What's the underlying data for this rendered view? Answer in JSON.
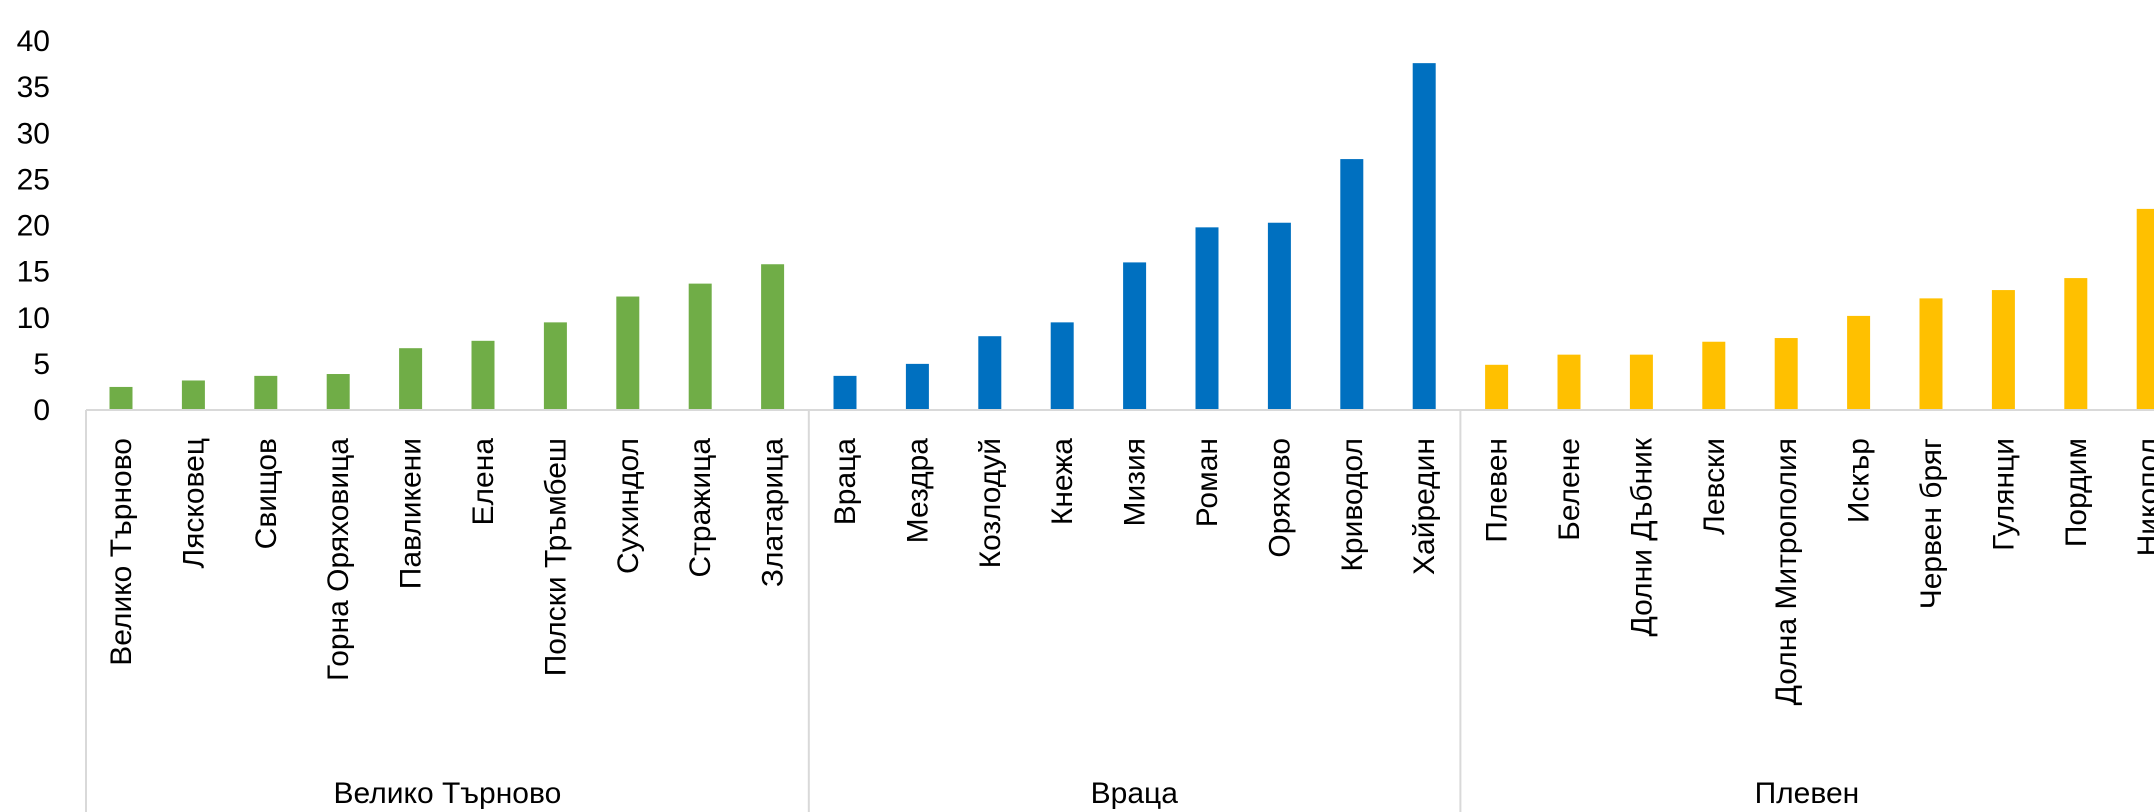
{
  "chart_data": {
    "type": "bar",
    "title": "",
    "xlabel": "",
    "ylabel": "",
    "ylim": [
      0,
      40
    ],
    "y_ticks": [
      "0",
      "5",
      "10",
      "15",
      "20",
      "25",
      "30",
      "35",
      "40"
    ],
    "grid": false,
    "legend": "none",
    "groups": [
      {
        "label": "Велико Търново",
        "color": "#70AD47",
        "categories": [
          "Велико Търново",
          "Лясковец",
          "Свищов",
          "Горна Оряховица",
          "Павликени",
          "Елена",
          "Полски Тръмбеш",
          "Сухиндол",
          "Стражица",
          "Златарица"
        ],
        "values": [
          2.5,
          3.2,
          3.7,
          3.9,
          6.7,
          7.5,
          9.5,
          12.3,
          13.7,
          15.8
        ]
      },
      {
        "label": "Враца",
        "color": "#0070C0",
        "categories": [
          "Враца",
          "Мездра",
          "Козлодуй",
          "Кнежа",
          "Мизия",
          "Роман",
          "Оряхово",
          "Криводол",
          "Хайредин"
        ],
        "values": [
          3.7,
          5.0,
          8.0,
          9.5,
          16.0,
          19.8,
          20.3,
          27.2,
          37.6
        ]
      },
      {
        "label": "Плевен",
        "color": "#FFC000",
        "categories": [
          "Плевен",
          "Белене",
          "Долни Дъбник",
          "Левски",
          "Долна Митрополия",
          "Искър",
          "Червен бряг",
          "Гулянци",
          "Пордим",
          "Никопол"
        ],
        "values": [
          4.9,
          6.0,
          6.0,
          7.4,
          7.8,
          10.2,
          12.1,
          13.0,
          14.3,
          21.8
        ]
      }
    ]
  }
}
